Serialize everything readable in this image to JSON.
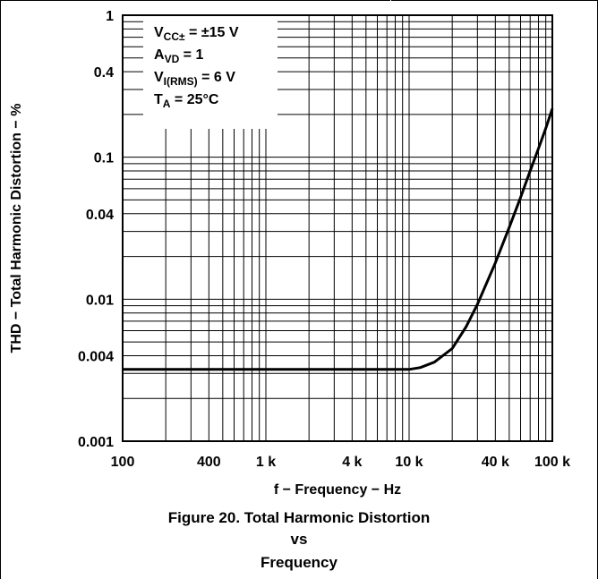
{
  "chart_data": {
    "type": "line",
    "x_scale": "log",
    "y_scale": "log",
    "xlim": [
      100,
      100000
    ],
    "ylim": [
      0.001,
      1
    ],
    "grid": true,
    "x_ticks": [
      {
        "value": 100,
        "label": "100"
      },
      {
        "value": 400,
        "label": "400"
      },
      {
        "value": 1000,
        "label": "1 k"
      },
      {
        "value": 4000,
        "label": "4 k"
      },
      {
        "value": 10000,
        "label": "10 k"
      },
      {
        "value": 40000,
        "label": "40 k"
      },
      {
        "value": 100000,
        "label": "100 k"
      }
    ],
    "y_ticks": [
      {
        "value": 1,
        "label": "1"
      },
      {
        "value": 0.4,
        "label": "0.4"
      },
      {
        "value": 0.1,
        "label": "0.1"
      },
      {
        "value": 0.04,
        "label": "0.04"
      },
      {
        "value": 0.01,
        "label": "0.01"
      },
      {
        "value": 0.004,
        "label": "0.004"
      },
      {
        "value": 0.001,
        "label": "0.001"
      }
    ],
    "xlabel": "f − Frequency − Hz",
    "ylabel": "THD − Total Harmonic Distortion − %",
    "conditions": [
      {
        "base": "V",
        "sub": "CC±",
        "rest": " = ±15 V"
      },
      {
        "base": "A",
        "sub": "VD",
        "rest": " = 1"
      },
      {
        "base": "V",
        "sub": "I(RMS)",
        "rest": " =  6 V"
      },
      {
        "base": "T",
        "sub": "A",
        "rest": " =  25°C"
      }
    ],
    "series": [
      {
        "x": [
          100,
          1000,
          10000,
          12000,
          15000,
          20000,
          25000,
          30000,
          40000,
          50000,
          60000,
          70000,
          80000,
          90000,
          100000
        ],
        "y": [
          0.0032,
          0.0032,
          0.0032,
          0.0033,
          0.0036,
          0.0045,
          0.0064,
          0.0092,
          0.018,
          0.032,
          0.052,
          0.08,
          0.115,
          0.16,
          0.22
        ]
      }
    ]
  },
  "caption": {
    "line1": "Figure 20. Total Harmonic Distortion",
    "line2": "vs",
    "line3": "Frequency"
  }
}
